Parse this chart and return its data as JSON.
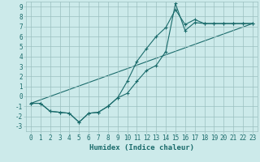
{
  "title": "",
  "xlabel": "Humidex (Indice chaleur)",
  "bg_color": "#cceaea",
  "grid_color": "#9bbfbf",
  "line_color": "#1a6b6b",
  "xlim": [
    -0.5,
    23.5
  ],
  "ylim": [
    -3.5,
    9.5
  ],
  "xticks": [
    0,
    1,
    2,
    3,
    4,
    5,
    6,
    7,
    8,
    9,
    10,
    11,
    12,
    13,
    14,
    15,
    16,
    17,
    18,
    19,
    20,
    21,
    22,
    23
  ],
  "yticks": [
    -3,
    -2,
    -1,
    0,
    1,
    2,
    3,
    4,
    5,
    6,
    7,
    8,
    9
  ],
  "series1_x": [
    0,
    1,
    2,
    3,
    4,
    5,
    6,
    7,
    8,
    9,
    10,
    11,
    12,
    13,
    14,
    15,
    16,
    17,
    18,
    19,
    20,
    21,
    22,
    23
  ],
  "series1_y": [
    -0.7,
    -0.7,
    -1.5,
    -1.6,
    -1.7,
    -2.6,
    -1.7,
    -1.6,
    -1.0,
    -0.15,
    0.3,
    1.5,
    2.6,
    3.1,
    4.5,
    9.3,
    6.6,
    7.4,
    7.3,
    7.3,
    7.3,
    7.3,
    7.3,
    7.3
  ],
  "series2_x": [
    0,
    1,
    2,
    3,
    4,
    5,
    6,
    7,
    8,
    9,
    10,
    11,
    12,
    13,
    14,
    15,
    16,
    17,
    18,
    19,
    20,
    21,
    22,
    23
  ],
  "series2_y": [
    -0.7,
    -0.7,
    -1.5,
    -1.6,
    -1.7,
    -2.6,
    -1.7,
    -1.6,
    -1.0,
    -0.15,
    1.5,
    3.5,
    4.8,
    6.0,
    6.9,
    8.7,
    7.2,
    7.7,
    7.3,
    7.3,
    7.3,
    7.3,
    7.3,
    7.3
  ],
  "series3_x": [
    0,
    23
  ],
  "series3_y": [
    -0.7,
    7.3
  ],
  "tick_fontsize": 5.5,
  "xlabel_fontsize": 6.5
}
